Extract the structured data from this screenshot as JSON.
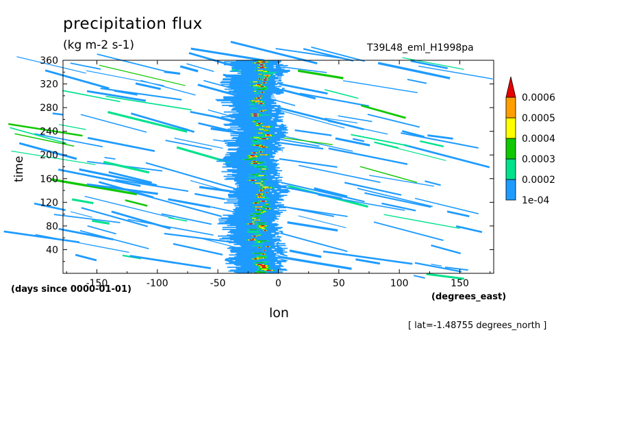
{
  "chart_data": {
    "type": "heatmap",
    "title": "precipitation flux",
    "units": "(kg m-2 s-1)",
    "run_label": "T39L48_eml_H1998pa",
    "xlabel": "lon",
    "x_units": "(degrees_east)",
    "ylabel": "time",
    "y_units": "(days since 0000-01-01)",
    "annotation": "[ lat=-1.48755 degrees_north ]",
    "xlim": [
      -178,
      178
    ],
    "ylim": [
      0,
      360
    ],
    "x_ticks": [
      -150,
      -100,
      -50,
      0,
      50,
      100,
      150
    ],
    "y_ticks": [
      40,
      80,
      120,
      160,
      200,
      240,
      280,
      320,
      360
    ],
    "x_tick_labels": [
      "-150",
      "-100",
      "-50",
      "0",
      "50",
      "100",
      "150"
    ],
    "y_tick_labels": [
      "40",
      "80",
      "120",
      "160",
      "200",
      "240",
      "280",
      "320",
      "360"
    ],
    "colorbar": {
      "levels": [
        "1e-04",
        "0.0002",
        "0.0003",
        "0.0004",
        "0.0005",
        "0.0006"
      ],
      "colors": [
        "#1e9bff",
        "#00e28c",
        "#10c800",
        "#ffff00",
        "#ff9e00",
        "#e60000"
      ],
      "extend": "max"
    },
    "features": {
      "convective_band_center_lon": -15,
      "convective_band_width_deg": 25,
      "propagation": "westward streaks",
      "grid": false
    }
  }
}
